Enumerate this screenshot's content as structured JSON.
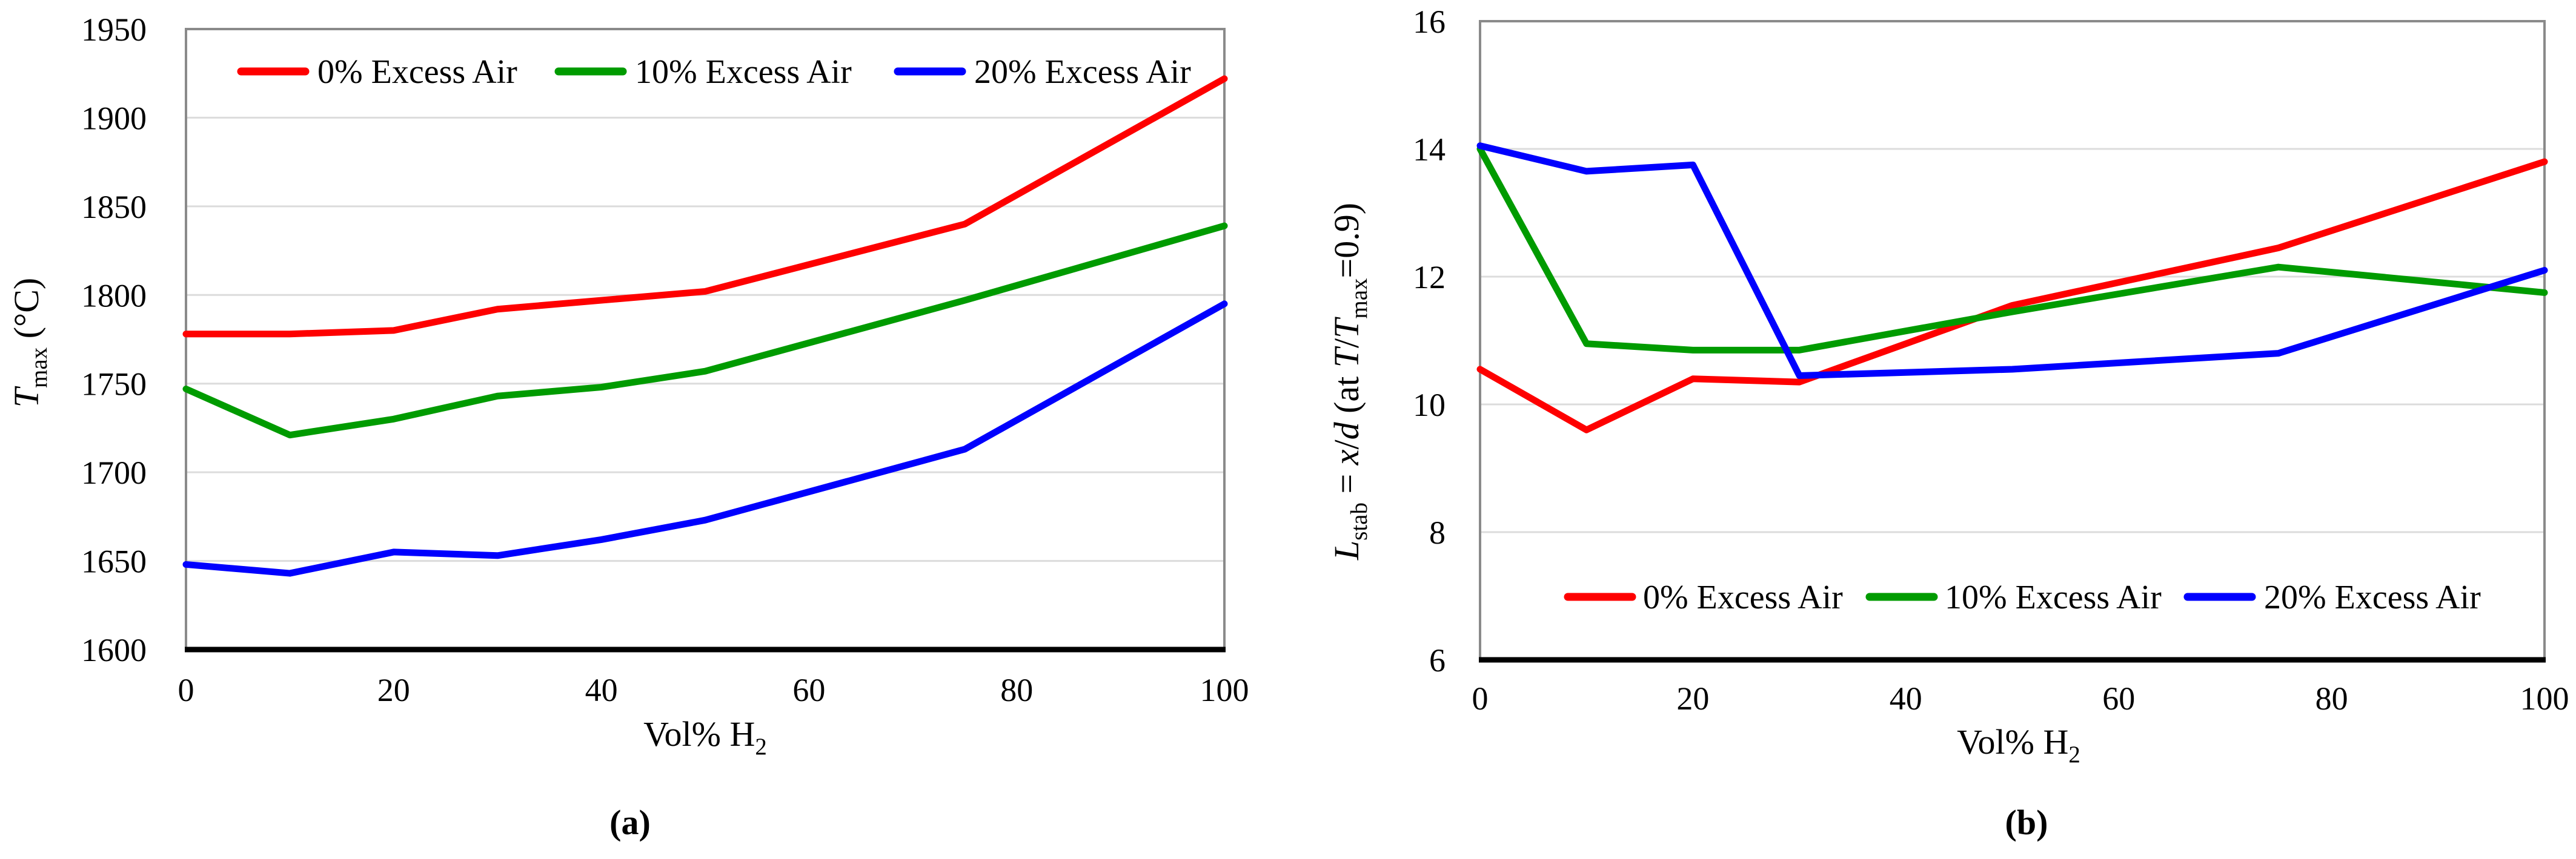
{
  "figure": {
    "caption_a": "(a)",
    "caption_b": "(b)"
  },
  "style": {
    "grid_color": "#dcdcdc",
    "border_color": "#8a8a8a",
    "axis_color": "#000000",
    "series_red": "#fe0000",
    "series_green": "#009b00",
    "series_blue": "#0000fe"
  },
  "chart_data": [
    {
      "id": "a",
      "type": "line",
      "title": "",
      "xlabel": "Vol% H2",
      "xlabel_parts": [
        [
          "n",
          "Vol% H"
        ],
        [
          "sub",
          "2"
        ]
      ],
      "ylabel": "Tmax (°C)",
      "ylabel_parts": [
        [
          "i",
          "T"
        ],
        [
          "sub",
          "max"
        ],
        [
          "n",
          " (°C)"
        ]
      ],
      "x": [
        0,
        10,
        20,
        30,
        40,
        50,
        75,
        100
      ],
      "xlim": [
        0,
        100
      ],
      "xticks": [
        0,
        20,
        40,
        60,
        80,
        100
      ],
      "ylim": [
        1600,
        1950
      ],
      "yticks": [
        1600,
        1650,
        1700,
        1750,
        1800,
        1850,
        1900,
        1950
      ],
      "grid": "horizontal-only",
      "legend_position": "top-inside",
      "series": [
        {
          "name": "0% Excess Air",
          "color": "#fe0000",
          "values": [
            1778,
            1778,
            1780,
            1792,
            1797,
            1802,
            1840,
            1922
          ]
        },
        {
          "name": "10% Excess Air",
          "color": "#009b00",
          "values": [
            1747,
            1721,
            1730,
            1743,
            1748,
            1757,
            1797,
            1839
          ]
        },
        {
          "name": "20% Excess Air",
          "color": "#0000fe",
          "values": [
            1648,
            1643,
            1655,
            1653,
            1662,
            1673,
            1713,
            1795
          ]
        }
      ]
    },
    {
      "id": "b",
      "type": "line",
      "title": "",
      "xlabel": "Vol% H2",
      "xlabel_parts": [
        [
          "n",
          "Vol% H"
        ],
        [
          "sub",
          "2"
        ]
      ],
      "ylabel": "Lstab = x/d (at T/Tmax=0.9)",
      "ylabel_parts": [
        [
          "i",
          "L"
        ],
        [
          "sub",
          "stab"
        ],
        [
          "n",
          " = "
        ],
        [
          "i",
          "x"
        ],
        [
          "n",
          "/"
        ],
        [
          "i",
          "d"
        ],
        [
          "n",
          " (at "
        ],
        [
          "i",
          "T"
        ],
        [
          "n",
          "/"
        ],
        [
          "i",
          "T"
        ],
        [
          "sub",
          "max"
        ],
        [
          "n",
          "=0.9)"
        ]
      ],
      "x": [
        0,
        10,
        20,
        30,
        40,
        50,
        75,
        100
      ],
      "xlim": [
        0,
        100
      ],
      "xticks": [
        0,
        20,
        40,
        60,
        80,
        100
      ],
      "ylim": [
        6,
        16
      ],
      "yticks": [
        6,
        8,
        10,
        12,
        14,
        16
      ],
      "grid": "horizontal-only",
      "legend_position": "bottom-inside",
      "series": [
        {
          "name": "0% Excess Air",
          "color": "#fe0000",
          "values": [
            10.55,
            9.6,
            10.4,
            10.35,
            10.95,
            11.55,
            12.45,
            13.8
          ]
        },
        {
          "name": "10% Excess Air",
          "color": "#009b00",
          "values": [
            14.0,
            10.95,
            10.85,
            10.85,
            11.15,
            11.45,
            12.15,
            11.75
          ]
        },
        {
          "name": "20% Excess Air",
          "color": "#0000fe",
          "values": [
            14.05,
            13.65,
            13.75,
            10.45,
            10.5,
            10.55,
            10.8,
            12.1
          ]
        }
      ]
    }
  ]
}
